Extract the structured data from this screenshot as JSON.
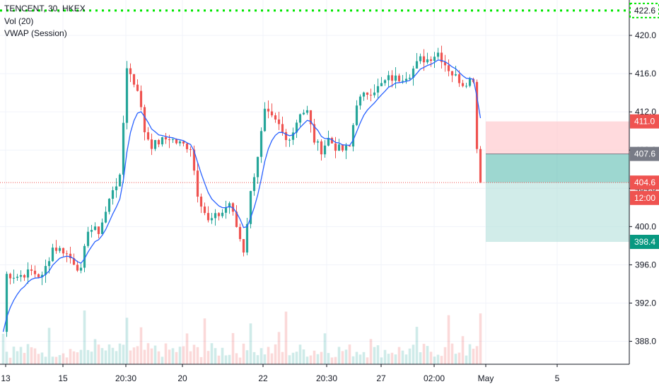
{
  "legend": {
    "symbol": "TENCENT, 30, HKEX",
    "indicator_vol": "Vol (20)",
    "indicator_vwap": "VWAP (Session)"
  },
  "colors": {
    "up": "#26a69a",
    "down": "#ef5350",
    "vwap": "#2962ff",
    "green_dotted": "#00e600",
    "stop_zone": "#ffcdd2",
    "target_zone": "#b2dfdb",
    "entry_box": "#5cbdb0"
  },
  "price_badges": [
    {
      "text": "422.6",
      "style": "outline-green",
      "value": 422.6
    },
    {
      "text": "411.0",
      "style": "red",
      "value": 411.0
    },
    {
      "text": "407.6",
      "style": "gray",
      "value": 407.6
    },
    {
      "text": "404.6",
      "style": "red",
      "value": 404.6
    },
    {
      "text": "12:00",
      "style": "red",
      "value": 403.0
    },
    {
      "text": "398.4",
      "style": "teal",
      "value": 398.4
    }
  ],
  "chart_data": {
    "type": "candlestick",
    "y_axis": {
      "ticks": [
        "388.0",
        "392.0",
        "396.0",
        "400.0",
        "404.0",
        "408.0",
        "412.0",
        "416.0",
        "420.0"
      ],
      "ylim": [
        385.6,
        423.7
      ]
    },
    "x_axis": {
      "ticks": [
        "13",
        "15",
        "20:30",
        "20",
        "22",
        "20:30",
        "27",
        "02:00",
        "May",
        "5"
      ]
    },
    "lines": {
      "green_dotted": 422.6,
      "red_dotted": 404.6
    },
    "risk_reward": {
      "stop": 411.0,
      "entry": 407.6,
      "target": 398.4
    },
    "series": [
      {
        "name": "TENCENT, 30, HKEX"
      }
    ],
    "path_keypoints": [
      [
        0,
        389.0
      ],
      [
        1,
        395.0
      ],
      [
        4,
        394.8
      ],
      [
        8,
        395.3
      ],
      [
        11,
        394.7
      ],
      [
        14,
        397.8
      ],
      [
        17,
        397.5
      ],
      [
        20,
        396.3
      ],
      [
        22,
        395.3
      ],
      [
        24,
        399.8
      ],
      [
        27,
        399.5
      ],
      [
        29,
        401.5
      ],
      [
        31,
        404.0
      ],
      [
        33,
        405.0
      ],
      [
        35,
        416.8
      ],
      [
        37,
        415.0
      ],
      [
        38,
        414.5
      ],
      [
        40,
        410.0
      ],
      [
        42,
        408.5
      ],
      [
        45,
        409.0
      ],
      [
        47,
        409.3
      ],
      [
        49,
        408.8
      ],
      [
        53,
        408.3
      ],
      [
        55,
        403.5
      ],
      [
        58,
        400.5
      ],
      [
        60,
        401.0
      ],
      [
        62,
        401.5
      ],
      [
        64,
        402.5
      ],
      [
        66,
        400.0
      ],
      [
        68,
        397.5
      ],
      [
        70,
        403.5
      ],
      [
        72,
        407.5
      ],
      [
        74,
        412.0
      ],
      [
        78,
        410.5
      ],
      [
        80,
        409.0
      ],
      [
        82,
        410.0
      ],
      [
        84,
        412.0
      ],
      [
        86,
        412.0
      ],
      [
        88,
        409.0
      ],
      [
        90,
        408.0
      ],
      [
        92,
        409.2
      ],
      [
        94,
        408.3
      ],
      [
        96,
        408.0
      ],
      [
        98,
        408.3
      ],
      [
        100,
        413.0
      ],
      [
        103,
        414.0
      ],
      [
        106,
        414.5
      ],
      [
        109,
        415.5
      ],
      [
        112,
        415.5
      ],
      [
        115,
        416.0
      ],
      [
        118,
        417.5
      ],
      [
        120,
        417.5
      ],
      [
        123,
        418.2
      ],
      [
        125,
        417.0
      ],
      [
        127,
        416.0
      ],
      [
        130,
        415.0
      ],
      [
        133,
        415.5
      ],
      [
        134,
        408.2
      ],
      [
        135,
        405.0
      ]
    ]
  }
}
